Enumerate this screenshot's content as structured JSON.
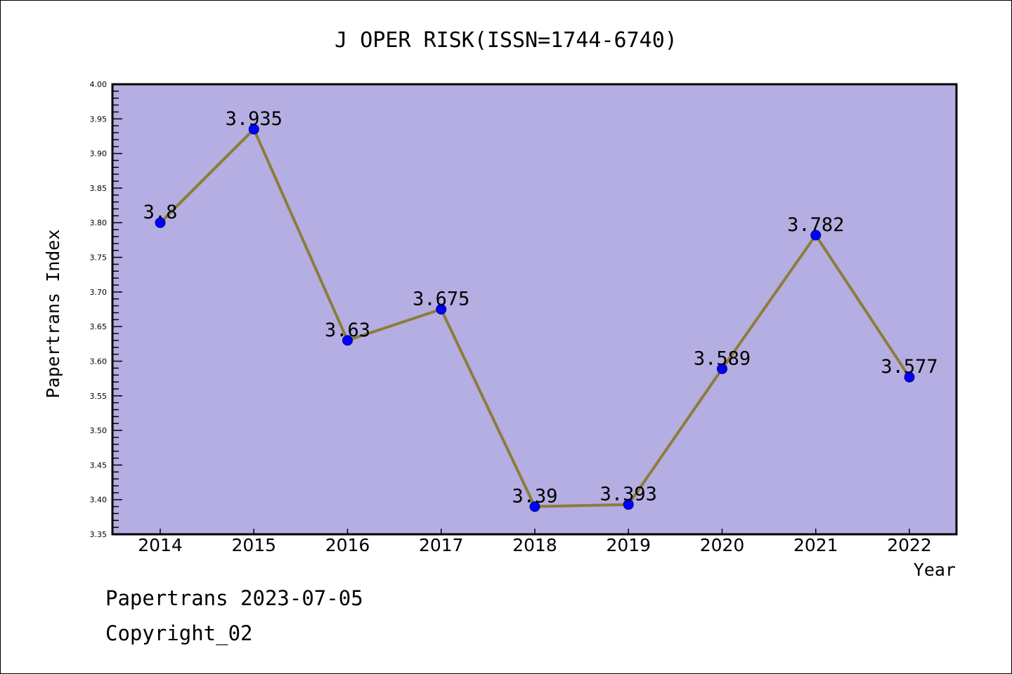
{
  "chart_data": {
    "type": "line",
    "title": "J OPER RISK(ISSN=1744-6740)",
    "xlabel": "Year",
    "ylabel": "Papertrans Index",
    "categories": [
      "2014",
      "2015",
      "2016",
      "2017",
      "2018",
      "2019",
      "2020",
      "2021",
      "2022"
    ],
    "values": [
      3.8,
      3.935,
      3.63,
      3.675,
      3.39,
      3.393,
      3.589,
      3.782,
      3.577
    ],
    "data_labels": [
      "3.8",
      "3.935",
      "3.63",
      "3.675",
      "3.39",
      "3.393",
      "3.589",
      "3.782",
      "3.577"
    ],
    "ylim": [
      3.35,
      4.0
    ],
    "yticks": [
      "3.35",
      "3.40",
      "3.45",
      "3.50",
      "3.55",
      "3.60",
      "3.65",
      "3.70",
      "3.75",
      "3.80",
      "3.85",
      "3.90",
      "3.95",
      "4.00"
    ],
    "grid": false,
    "colors": {
      "plot_bg": "#b5aee2",
      "line": "#8b7d3a",
      "marker": "#0000ff"
    }
  },
  "footer": {
    "date_line": "Papertrans 2023-07-05",
    "copyright": "Copyright_02"
  }
}
